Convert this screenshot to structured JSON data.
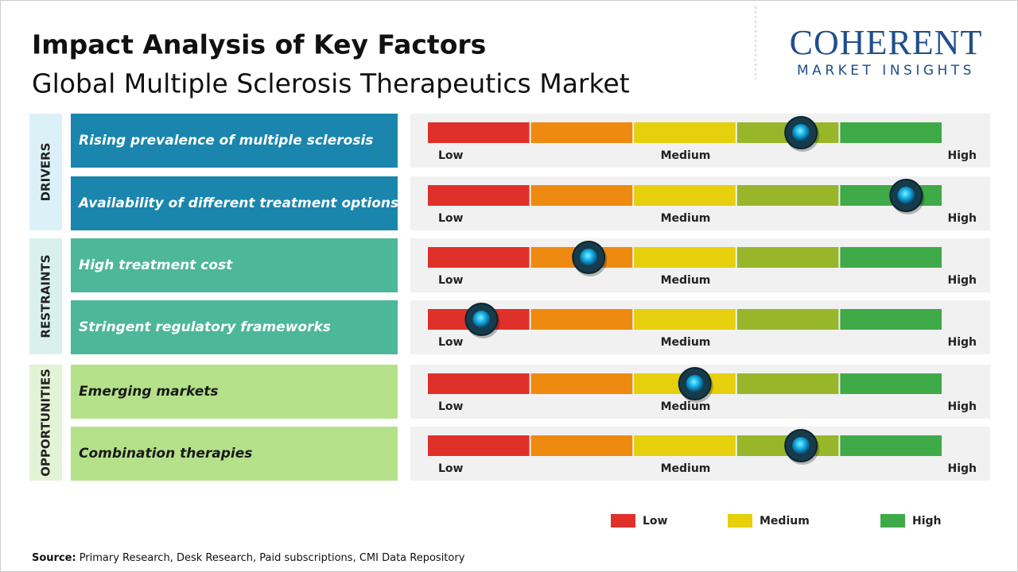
{
  "header": {
    "title": "Impact Analysis of Key Factors",
    "subtitle": "Global Multiple Sclerosis Therapeutics Market"
  },
  "logo": {
    "name": "COHERENT",
    "tagline": "MARKET INSIGHTS"
  },
  "chart_data": {
    "type": "impact",
    "xlim": [
      0,
      5
    ],
    "scale_labels": [
      "Low",
      "Medium",
      "High"
    ],
    "segment_colors": [
      "#e0302a",
      "#ee8a0f",
      "#e6cf0c",
      "#98b62a",
      "#3faa48"
    ],
    "groups": [
      {
        "name": "DRIVERS",
        "color": "#1a86ad",
        "label_color": "#dcf0f8",
        "text_color": "#ffffff",
        "factors": [
          {
            "name": "Rising prevalence of multiple sclerosis",
            "value": 3.62
          },
          {
            "name": "Availability of different treatment options",
            "value": 4.64
          }
        ]
      },
      {
        "name": "RESTRAINTS",
        "color": "#4db799",
        "label_color": "#d9f1ea",
        "text_color": "#ffffff",
        "factors": [
          {
            "name": "High treatment cost",
            "value": 1.56
          },
          {
            "name": "Stringent regulatory frameworks",
            "value": 0.52
          }
        ]
      },
      {
        "name": "OPPORTUNITIES",
        "color": "#b5e18a",
        "label_color": "#e3f3d5",
        "text_color": "#1a1a1a",
        "factors": [
          {
            "name": "Emerging markets",
            "value": 2.59
          },
          {
            "name": "Combination therapies",
            "value": 3.62
          }
        ]
      }
    ],
    "legend": [
      {
        "name": "Low",
        "color": "#e0302a"
      },
      {
        "name": "Medium",
        "color": "#e6cf0c"
      },
      {
        "name": "High",
        "color": "#3faa48"
      }
    ]
  },
  "source": {
    "label": "Source:",
    "text": "Primary Research, Desk Research, Paid subscriptions, CMI Data Repository"
  }
}
